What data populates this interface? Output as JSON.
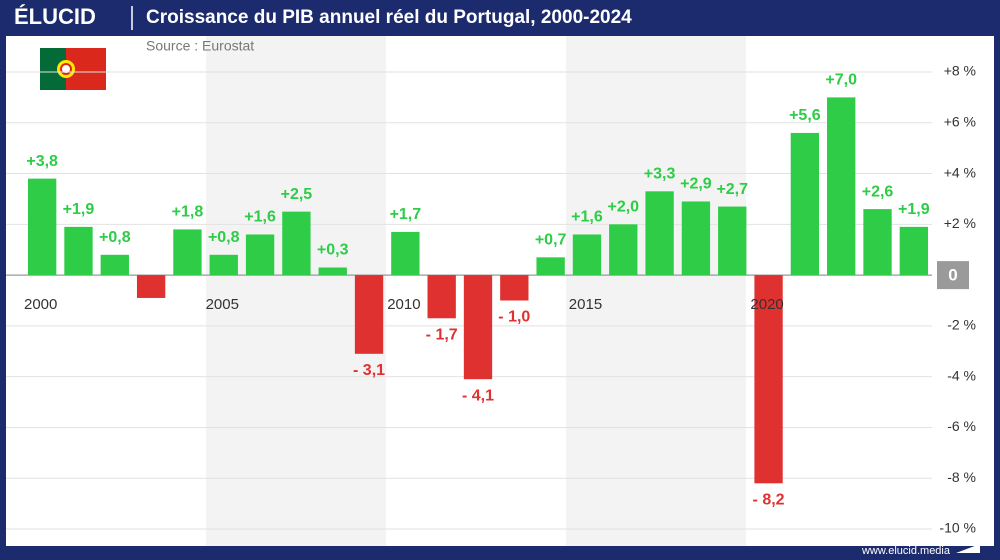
{
  "header": {
    "brand": "ÉLUCID"
  },
  "chart_data": {
    "type": "bar",
    "title": "Croissance du PIB annuel réel du Portugal, 2000-2024",
    "subtitle": "Source : Eurostat",
    "categories": [
      "2000",
      null,
      null,
      null,
      null,
      "2005",
      null,
      null,
      null,
      null,
      "2010",
      null,
      null,
      null,
      null,
      "2015",
      null,
      null,
      null,
      null,
      "2020",
      null,
      null,
      null,
      null
    ],
    "values": [
      3.8,
      1.9,
      0.8,
      -0.9,
      1.8,
      0.8,
      1.6,
      2.5,
      0.3,
      -3.1,
      1.7,
      -1.7,
      -4.1,
      -1.0,
      0.7,
      1.6,
      2.0,
      3.3,
      2.9,
      2.7,
      -8.2,
      5.6,
      7.0,
      2.6,
      1.9
    ],
    "value_labels": [
      "+3,8",
      "+1,9",
      "+0,8",
      null,
      "+1,8",
      "+0,8",
      "+1,6",
      "+2,5",
      "+0,3",
      "- 3,1",
      "+1,7",
      "- 1,7",
      "- 4,1",
      "- 1,0",
      "+0,7",
      "+1,6",
      "+2,0",
      "+3,3",
      "+2,9",
      "+2,7",
      "- 8,2",
      "+5,6",
      "+7,0",
      "+2,6",
      "+1,9"
    ],
    "positive_color": "#2ecc47",
    "negative_color": "#e03131",
    "ylim": [
      -10,
      8
    ],
    "yticks": [
      {
        "value": 8,
        "label": "+8 %"
      },
      {
        "value": 6,
        "label": "+6 %"
      },
      {
        "value": 4,
        "label": "+4 %"
      },
      {
        "value": 2,
        "label": "+2 %"
      },
      {
        "value": 0,
        "label": "0"
      },
      {
        "value": -2,
        "label": "-2 %"
      },
      {
        "value": -4,
        "label": "-4 %"
      },
      {
        "value": -6,
        "label": "-6 %"
      },
      {
        "value": -8,
        "label": "-8 %"
      },
      {
        "value": -10,
        "label": "-10 %"
      }
    ],
    "grid": true
  },
  "footer": {
    "url": "www.elucid.media"
  }
}
